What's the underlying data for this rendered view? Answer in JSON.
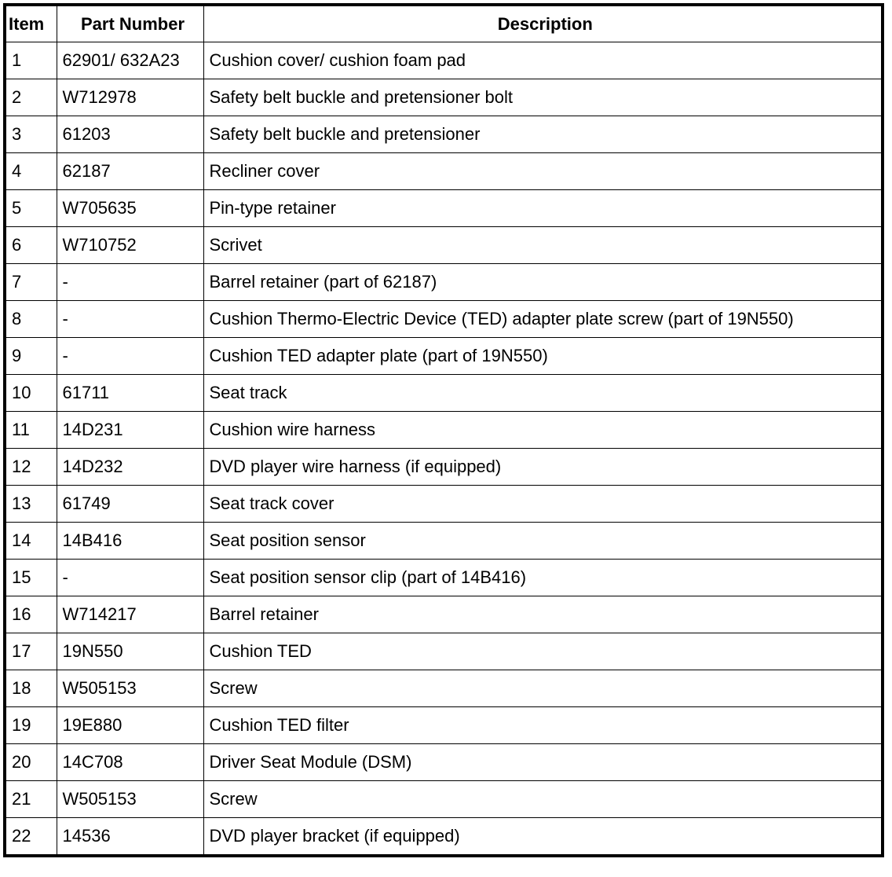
{
  "headers": [
    "Item",
    "Part Number",
    "Description"
  ],
  "rows": [
    [
      "1",
      "62901/ 632A23",
      "Cushion cover/ cushion foam pad"
    ],
    [
      "2",
      "W712978",
      "Safety belt buckle and pretensioner bolt"
    ],
    [
      "3",
      "61203",
      "Safety belt buckle and pretensioner"
    ],
    [
      "4",
      "62187",
      "Recliner cover"
    ],
    [
      "5",
      "W705635",
      "Pin-type retainer"
    ],
    [
      "6",
      "W710752",
      "Scrivet"
    ],
    [
      "7",
      "-",
      "Barrel retainer (part of 62187)"
    ],
    [
      "8",
      "-",
      "Cushion Thermo-Electric Device (TED) adapter plate screw (part of 19N550)"
    ],
    [
      "9",
      "-",
      "Cushion TED adapter plate (part of 19N550)"
    ],
    [
      "10",
      "61711",
      "Seat track"
    ],
    [
      "11",
      "14D231",
      "Cushion wire harness"
    ],
    [
      "12",
      "14D232",
      "DVD player wire harness (if equipped)"
    ],
    [
      "13",
      "61749",
      "Seat track cover"
    ],
    [
      "14",
      "14B416",
      "Seat position sensor"
    ],
    [
      "15",
      "-",
      "Seat position sensor clip (part of 14B416)"
    ],
    [
      "16",
      "W714217",
      "Barrel retainer"
    ],
    [
      "17",
      "19N550",
      "Cushion TED"
    ],
    [
      "18",
      "W505153",
      "Screw"
    ],
    [
      "19",
      "19E880",
      "Cushion TED filter"
    ],
    [
      "20",
      "14C708",
      "Driver Seat Module (DSM)"
    ],
    [
      "21",
      "W505153",
      "Screw"
    ],
    [
      "22",
      "14536",
      "DVD player bracket (if equipped)"
    ]
  ]
}
